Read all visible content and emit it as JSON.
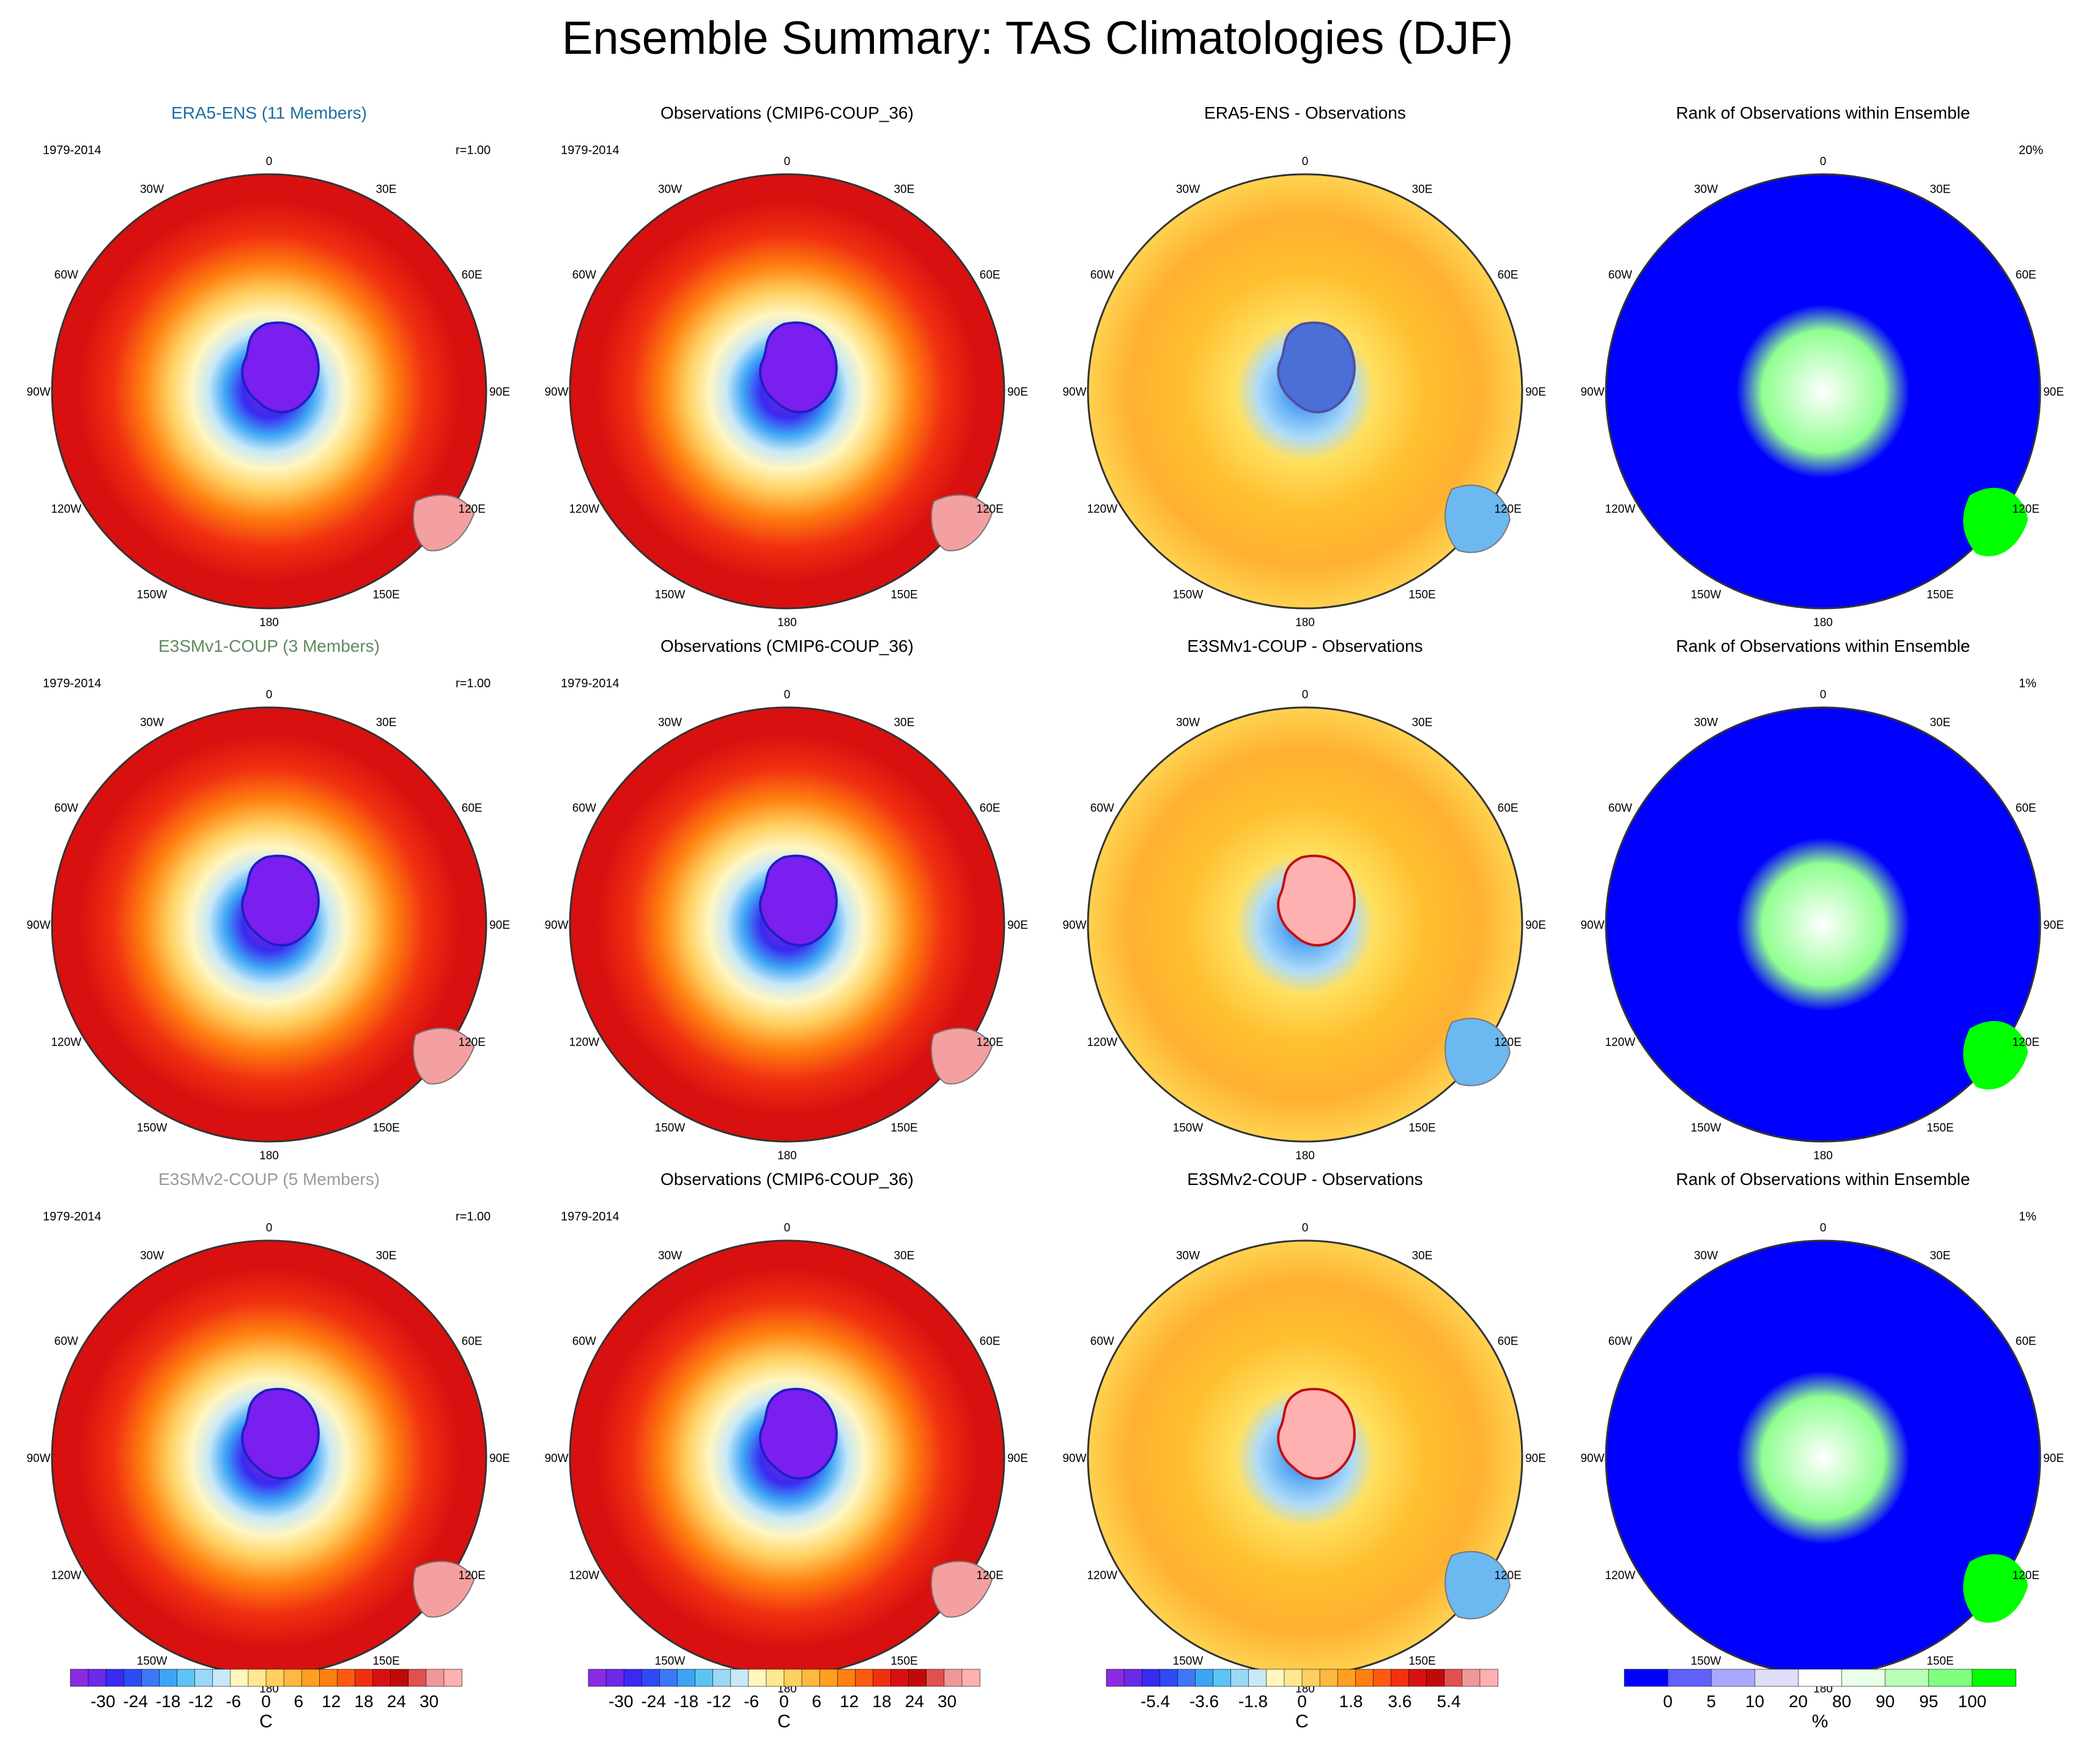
{
  "title": "Ensemble Summary: TAS Climatologies (DJF)",
  "colors": {
    "tas": [
      "#8a2be2",
      "#6a2ae8",
      "#3a2af0",
      "#2e4af5",
      "#3c78f5",
      "#3ca4f5",
      "#5cc4f5",
      "#9ad8f5",
      "#c8e8f8",
      "#fff6c0",
      "#ffe890",
      "#ffd060",
      "#ffb840",
      "#ffa020",
      "#ff8010",
      "#ff5a10",
      "#f03010",
      "#d81010",
      "#c00a0a",
      "#e05050",
      "#f09898",
      "#ffb0b0"
    ],
    "rank": [
      "#0000ff",
      "#6060ff",
      "#a8a8ff",
      "#dedefa",
      "#ffffff",
      "#e8ffe8",
      "#b8ffb8",
      "#80ff80",
      "#00ff00"
    ]
  },
  "rows": [
    {
      "model": {
        "title": "ERA5-ENS (11 Members)",
        "title_color": "#1d6e9e",
        "period": "1979-2014",
        "corr": "r=1.00"
      },
      "obs": {
        "title": "Observations (CMIP6-COUP_36)",
        "period": "1979-2014"
      },
      "diff": {
        "title": "ERA5-ENS - Observations"
      },
      "rank": {
        "title": "Rank of Observations within Ensemble",
        "pct": "20%"
      }
    },
    {
      "model": {
        "title": "E3SMv1-COUP (3 Members)",
        "title_color": "#5f8a5f",
        "period": "1979-2014",
        "corr": "r=1.00"
      },
      "obs": {
        "title": "Observations (CMIP6-COUP_36)",
        "period": "1979-2014"
      },
      "diff": {
        "title": "E3SMv1-COUP - Observations"
      },
      "rank": {
        "title": "Rank of Observations within Ensemble",
        "pct": "1%"
      }
    },
    {
      "model": {
        "title": "E3SMv2-COUP (5 Members)",
        "title_color": "#9a9a9a",
        "period": "1979-2014",
        "corr": "r=1.00"
      },
      "obs": {
        "title": "Observations (CMIP6-COUP_36)",
        "period": "1979-2014"
      },
      "diff": {
        "title": "E3SMv2-COUP - Observations"
      },
      "rank": {
        "title": "Rank of Observations within Ensemble",
        "pct": "1%"
      }
    }
  ],
  "lon_labels": [
    "0",
    "30E",
    "60E",
    "90E",
    "120E",
    "150E",
    "180",
    "150W",
    "120W",
    "90W",
    "60W",
    "30W"
  ],
  "colorbars": [
    {
      "labels": [
        "-30",
        "-24",
        "-18",
        "-12",
        "-6",
        "0",
        "6",
        "12",
        "18",
        "24",
        "30"
      ],
      "unit": "C"
    },
    {
      "labels": [
        "-30",
        "-24",
        "-18",
        "-12",
        "-6",
        "0",
        "6",
        "12",
        "18",
        "24",
        "30"
      ],
      "unit": "C"
    },
    {
      "labels": [
        "-5.4",
        "-3.6",
        "-1.8",
        "0",
        "1.8",
        "3.6",
        "5.4"
      ],
      "unit": "C"
    },
    {
      "labels": [
        "0",
        "5",
        "10",
        "20",
        "80",
        "90",
        "95",
        "100"
      ],
      "unit": "%"
    }
  ]
}
